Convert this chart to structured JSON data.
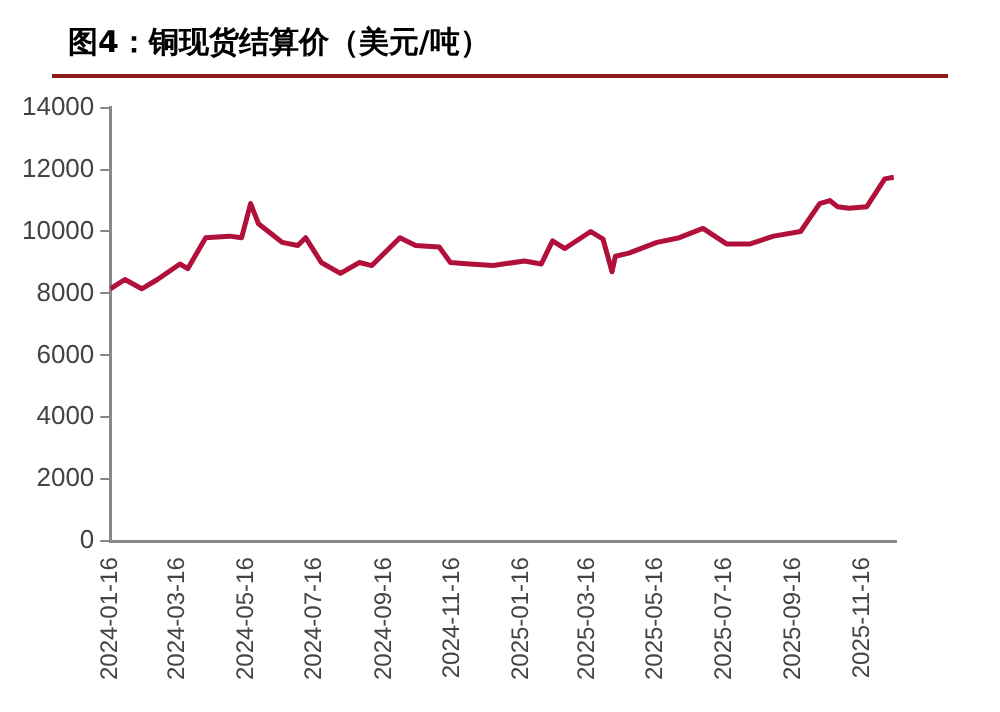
{
  "chart_data": {
    "type": "line",
    "title": "图4：铜现货结算价（美元/吨）",
    "x": [
      "2024-01-16",
      "2024-01-29",
      "2024-02-13",
      "2024-02-27",
      "2024-03-18",
      "2024-03-25",
      "2024-04-10",
      "2024-05-01",
      "2024-05-12",
      "2024-05-20",
      "2024-05-27",
      "2024-06-17",
      "2024-07-01",
      "2024-07-08",
      "2024-07-22",
      "2024-08-08",
      "2024-08-25",
      "2024-09-05",
      "2024-09-30",
      "2024-10-14",
      "2024-11-04",
      "2024-11-14",
      "2024-12-01",
      "2024-12-22",
      "2025-01-19",
      "2025-02-03",
      "2025-02-13",
      "2025-02-24",
      "2025-03-19",
      "2025-03-30",
      "2025-04-07",
      "2025-04-10",
      "2025-04-22",
      "2025-05-17",
      "2025-06-06",
      "2025-06-27",
      "2025-07-18",
      "2025-08-08",
      "2025-08-29",
      "2025-09-22",
      "2025-10-09",
      "2025-10-18",
      "2025-10-25",
      "2025-11-04",
      "2025-11-20",
      "2025-12-06",
      "2025-12-14"
    ],
    "series": [
      {
        "color": "#b0103a",
        "values": [
          8150,
          8450,
          8150,
          8450,
          8950,
          8800,
          9800,
          9850,
          9800,
          10900,
          10250,
          9650,
          9550,
          9800,
          9000,
          8650,
          9000,
          8900,
          9800,
          9550,
          9500,
          9000,
          8950,
          8900,
          9050,
          8950,
          9700,
          9450,
          10000,
          9750,
          8700,
          9200,
          9300,
          9650,
          9800,
          10100,
          9600,
          9600,
          9850,
          10000,
          10900,
          11000,
          10800,
          10750,
          10800,
          11700,
          11750
        ]
      }
    ],
    "xlim": [
      "2024-01-16",
      "2025-12-16"
    ],
    "xticks": [
      "2024-01-16",
      "2024-03-16",
      "2024-05-16",
      "2024-07-16",
      "2024-09-16",
      "2024-11-16",
      "2025-01-16",
      "2025-03-16",
      "2025-05-16",
      "2025-07-16",
      "2025-09-16",
      "2025-11-16"
    ],
    "ylim": [
      0,
      14000
    ],
    "yticks": [
      0,
      2000,
      4000,
      6000,
      8000,
      10000,
      12000,
      14000
    ],
    "grid": false,
    "legend": false,
    "marker": "none",
    "line_style": "solid"
  }
}
